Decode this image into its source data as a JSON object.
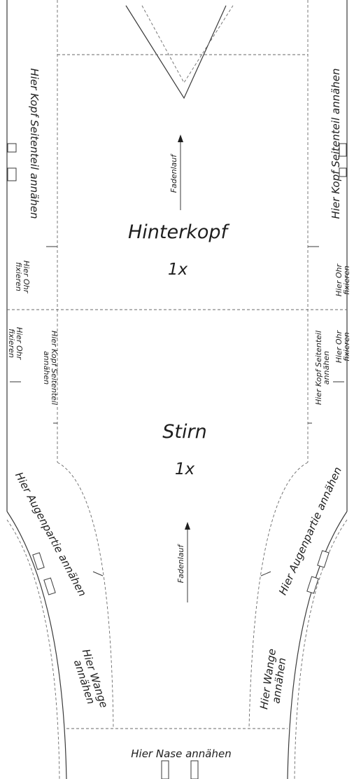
{
  "pieces": {
    "hinterkopf": {
      "name": "Hinterkopf",
      "count": "1x",
      "grain": "Fadenlauf"
    },
    "stirn": {
      "name": "Stirn",
      "count": "1x",
      "grain": "Fadenlauf"
    }
  },
  "labels": {
    "kopf_seitenteil": "Hier Kopf Seitenteil annähen",
    "kopf_seitenteil_small_1": "Hier Kopf Seitenteil",
    "kopf_seitenteil_small_2": "annähen",
    "ohr_1": "Hier Ohr",
    "ohr_2": "fixieren",
    "augenpartie": "Hier Augenpartie annähen",
    "wange_1": "Hier Wange",
    "wange_2": "annähen",
    "nase": "Hier Nase annähen"
  }
}
